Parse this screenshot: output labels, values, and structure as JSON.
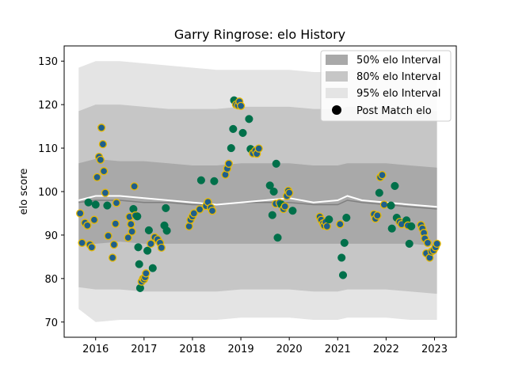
{
  "chart_data": {
    "type": "scatter",
    "title": "Garry Ringrose: elo History",
    "xlabel": "",
    "ylabel": "elo score",
    "xlim": [
      2015.35,
      2023.45
    ],
    "ylim": [
      66.5,
      133.5
    ],
    "x_ticks": [
      2016,
      2017,
      2018,
      2019,
      2020,
      2021,
      2022,
      2023
    ],
    "x_tick_labels": [
      "2016",
      "2017",
      "2018",
      "2019",
      "2020",
      "2021",
      "2022",
      "2023"
    ],
    "y_ticks": [
      70,
      80,
      90,
      100,
      110,
      120,
      130
    ],
    "y_tick_labels": [
      "70",
      "80",
      "90",
      "100",
      "110",
      "120",
      "130"
    ],
    "grid": false,
    "legend_position": "top-right",
    "legend": [
      {
        "key": "i50",
        "label": "50% elo Interval"
      },
      {
        "key": "i80",
        "label": "80% elo Interval"
      },
      {
        "key": "i95",
        "label": "95% elo Interval"
      },
      {
        "key": "pts",
        "label": "Post Match elo"
      }
    ],
    "colors": {
      "band50": "#a9a9a9",
      "band80": "#c6c6c6",
      "band95": "#e4e4e4",
      "mean_line": "#808080",
      "median_line": "#ffffff",
      "point_fill": "#00704a",
      "point_fill_alt": "#1f5f8b",
      "point_edge_alt": "#e6b800"
    },
    "bands": {
      "x": [
        2015.65,
        2016.0,
        2016.5,
        2017.0,
        2017.5,
        2018.0,
        2018.5,
        2019.0,
        2019.5,
        2020.0,
        2020.5,
        2021.0,
        2021.2,
        2021.5,
        2022.0,
        2022.5,
        2023.05
      ],
      "p95_hi": [
        128.5,
        130.0,
        130.0,
        129.5,
        129.0,
        128.5,
        128.0,
        128.0,
        128.0,
        128.0,
        127.5,
        127.5,
        128.0,
        128.0,
        128.0,
        127.5,
        127.5
      ],
      "p80_hi": [
        118.5,
        120.0,
        120.0,
        119.5,
        119.0,
        119.0,
        119.0,
        119.5,
        119.5,
        119.5,
        119.0,
        119.0,
        119.5,
        119.5,
        119.5,
        119.0,
        118.5
      ],
      "p50_hi": [
        106.5,
        107.5,
        107.0,
        107.0,
        106.5,
        106.0,
        106.0,
        106.5,
        106.5,
        106.5,
        106.0,
        106.0,
        106.5,
        106.5,
        106.5,
        106.0,
        105.5
      ],
      "p50_lo": [
        88.0,
        88.0,
        88.5,
        88.0,
        88.0,
        88.0,
        88.0,
        88.0,
        88.0,
        88.0,
        88.0,
        88.0,
        88.0,
        88.0,
        88.0,
        88.0,
        87.5
      ],
      "p80_lo": [
        78.0,
        77.5,
        77.5,
        77.0,
        77.0,
        77.0,
        77.0,
        77.5,
        77.5,
        77.5,
        77.0,
        77.0,
        77.5,
        77.5,
        77.5,
        77.0,
        76.5
      ],
      "p95_lo": [
        73.0,
        70.0,
        70.5,
        70.5,
        70.5,
        70.5,
        70.5,
        71.0,
        71.0,
        71.0,
        70.5,
        70.5,
        71.0,
        71.0,
        71.0,
        70.5,
        70.5
      ],
      "mean": [
        97.5,
        98.0,
        98.0,
        97.5,
        97.5,
        97.0,
        97.0,
        97.5,
        97.5,
        97.5,
        97.0,
        97.0,
        98.0,
        97.5,
        97.0,
        96.5,
        96.0
      ],
      "median": [
        98.0,
        99.0,
        99.0,
        98.5,
        98.0,
        97.5,
        97.0,
        97.5,
        98.0,
        98.5,
        97.5,
        98.0,
        99.0,
        98.0,
        97.5,
        97.0,
        96.5
      ]
    },
    "points": [
      {
        "x": 2015.68,
        "y": 95.0,
        "s": "a"
      },
      {
        "x": 2015.72,
        "y": 88.2,
        "s": "a"
      },
      {
        "x": 2015.78,
        "y": 92.8,
        "s": "a"
      },
      {
        "x": 2015.83,
        "y": 92.2,
        "s": "a"
      },
      {
        "x": 2015.85,
        "y": 97.5,
        "s": "g"
      },
      {
        "x": 2015.88,
        "y": 87.8,
        "s": "a"
      },
      {
        "x": 2015.92,
        "y": 87.2,
        "s": "a"
      },
      {
        "x": 2015.97,
        "y": 93.5,
        "s": "a"
      },
      {
        "x": 2016.0,
        "y": 97.0,
        "s": "g"
      },
      {
        "x": 2016.03,
        "y": 103.3,
        "s": "a"
      },
      {
        "x": 2016.07,
        "y": 108.0,
        "s": "a"
      },
      {
        "x": 2016.1,
        "y": 107.3,
        "s": "a"
      },
      {
        "x": 2016.12,
        "y": 114.7,
        "s": "a"
      },
      {
        "x": 2016.15,
        "y": 110.9,
        "s": "a"
      },
      {
        "x": 2016.17,
        "y": 104.7,
        "s": "a"
      },
      {
        "x": 2016.2,
        "y": 99.7,
        "s": "a"
      },
      {
        "x": 2016.24,
        "y": 96.8,
        "s": "g"
      },
      {
        "x": 2016.26,
        "y": 89.8,
        "s": "a"
      },
      {
        "x": 2016.35,
        "y": 84.8,
        "s": "a"
      },
      {
        "x": 2016.38,
        "y": 87.8,
        "s": "a"
      },
      {
        "x": 2016.41,
        "y": 92.6,
        "s": "a"
      },
      {
        "x": 2016.43,
        "y": 97.4,
        "s": "a"
      },
      {
        "x": 2016.67,
        "y": 89.4,
        "s": "a"
      },
      {
        "x": 2016.7,
        "y": 94.2,
        "s": "a"
      },
      {
        "x": 2016.73,
        "y": 92.5,
        "s": "a"
      },
      {
        "x": 2016.75,
        "y": 90.8,
        "s": "a"
      },
      {
        "x": 2016.78,
        "y": 96.0,
        "s": "g"
      },
      {
        "x": 2016.8,
        "y": 101.2,
        "s": "a"
      },
      {
        "x": 2016.82,
        "y": 94.5,
        "s": "a"
      },
      {
        "x": 2016.86,
        "y": 94.3,
        "s": "g"
      },
      {
        "x": 2016.88,
        "y": 87.2,
        "s": "g"
      },
      {
        "x": 2016.9,
        "y": 83.3,
        "s": "g"
      },
      {
        "x": 2016.92,
        "y": 77.8,
        "s": "g"
      },
      {
        "x": 2016.95,
        "y": 79.3,
        "s": "a"
      },
      {
        "x": 2016.98,
        "y": 80.0,
        "s": "a"
      },
      {
        "x": 2017.0,
        "y": 79.8,
        "s": "a"
      },
      {
        "x": 2017.02,
        "y": 80.3,
        "s": "a"
      },
      {
        "x": 2017.04,
        "y": 81.2,
        "s": "a"
      },
      {
        "x": 2017.07,
        "y": 86.4,
        "s": "g"
      },
      {
        "x": 2017.1,
        "y": 91.1,
        "s": "g"
      },
      {
        "x": 2017.14,
        "y": 88.0,
        "s": "a"
      },
      {
        "x": 2017.18,
        "y": 82.4,
        "s": "g"
      },
      {
        "x": 2017.22,
        "y": 89.5,
        "s": "a"
      },
      {
        "x": 2017.28,
        "y": 89.0,
        "s": "a"
      },
      {
        "x": 2017.33,
        "y": 88.2,
        "s": "a"
      },
      {
        "x": 2017.36,
        "y": 87.1,
        "s": "a"
      },
      {
        "x": 2017.42,
        "y": 92.2,
        "s": "g"
      },
      {
        "x": 2017.45,
        "y": 96.2,
        "s": "g"
      },
      {
        "x": 2017.47,
        "y": 91.0,
        "s": "g"
      },
      {
        "x": 2017.93,
        "y": 92.0,
        "s": "a"
      },
      {
        "x": 2017.96,
        "y": 93.5,
        "s": "a"
      },
      {
        "x": 2018.0,
        "y": 94.3,
        "s": "a"
      },
      {
        "x": 2018.03,
        "y": 95.0,
        "s": "a"
      },
      {
        "x": 2018.15,
        "y": 95.9,
        "s": "a"
      },
      {
        "x": 2018.18,
        "y": 102.6,
        "s": "g"
      },
      {
        "x": 2018.28,
        "y": 96.7,
        "s": "a"
      },
      {
        "x": 2018.32,
        "y": 97.6,
        "s": "a"
      },
      {
        "x": 2018.38,
        "y": 96.3,
        "s": "a"
      },
      {
        "x": 2018.41,
        "y": 95.6,
        "s": "a"
      },
      {
        "x": 2018.45,
        "y": 102.4,
        "s": "g"
      },
      {
        "x": 2018.68,
        "y": 103.9,
        "s": "a"
      },
      {
        "x": 2018.72,
        "y": 105.3,
        "s": "a"
      },
      {
        "x": 2018.75,
        "y": 106.4,
        "s": "a"
      },
      {
        "x": 2018.8,
        "y": 110.0,
        "s": "g"
      },
      {
        "x": 2018.84,
        "y": 114.4,
        "s": "g"
      },
      {
        "x": 2018.86,
        "y": 121.0,
        "s": "g"
      },
      {
        "x": 2018.9,
        "y": 120.0,
        "s": "a"
      },
      {
        "x": 2018.94,
        "y": 119.8,
        "s": "a"
      },
      {
        "x": 2018.97,
        "y": 120.7,
        "s": "a"
      },
      {
        "x": 2019.0,
        "y": 119.7,
        "s": "a"
      },
      {
        "x": 2019.04,
        "y": 113.5,
        "s": "g"
      },
      {
        "x": 2019.17,
        "y": 116.7,
        "s": "g"
      },
      {
        "x": 2019.2,
        "y": 109.8,
        "s": "g"
      },
      {
        "x": 2019.25,
        "y": 108.8,
        "s": "a"
      },
      {
        "x": 2019.3,
        "y": 109.4,
        "s": "a"
      },
      {
        "x": 2019.33,
        "y": 108.7,
        "s": "a"
      },
      {
        "x": 2019.37,
        "y": 109.9,
        "s": "a"
      },
      {
        "x": 2019.6,
        "y": 101.4,
        "s": "g"
      },
      {
        "x": 2019.65,
        "y": 94.6,
        "s": "g"
      },
      {
        "x": 2019.68,
        "y": 100.0,
        "s": "g"
      },
      {
        "x": 2019.72,
        "y": 97.2,
        "s": "a"
      },
      {
        "x": 2019.73,
        "y": 106.4,
        "s": "g"
      },
      {
        "x": 2019.76,
        "y": 89.4,
        "s": "g"
      },
      {
        "x": 2019.8,
        "y": 97.4,
        "s": "a"
      },
      {
        "x": 2019.84,
        "y": 97.0,
        "s": "g"
      },
      {
        "x": 2019.88,
        "y": 96.0,
        "s": "a"
      },
      {
        "x": 2019.91,
        "y": 96.6,
        "s": "a"
      },
      {
        "x": 2019.95,
        "y": 99.0,
        "s": "a"
      },
      {
        "x": 2019.98,
        "y": 100.2,
        "s": "a"
      },
      {
        "x": 2020.0,
        "y": 99.7,
        "s": "a"
      },
      {
        "x": 2020.07,
        "y": 95.6,
        "s": "g"
      },
      {
        "x": 2020.63,
        "y": 94.2,
        "s": "a"
      },
      {
        "x": 2020.66,
        "y": 93.5,
        "s": "a"
      },
      {
        "x": 2020.7,
        "y": 92.7,
        "s": "a"
      },
      {
        "x": 2020.72,
        "y": 92.2,
        "s": "a"
      },
      {
        "x": 2020.75,
        "y": 93.0,
        "s": "a"
      },
      {
        "x": 2020.78,
        "y": 92.0,
        "s": "a"
      },
      {
        "x": 2020.82,
        "y": 93.6,
        "s": "g"
      },
      {
        "x": 2021.05,
        "y": 92.5,
        "s": "a"
      },
      {
        "x": 2021.08,
        "y": 84.8,
        "s": "g"
      },
      {
        "x": 2021.11,
        "y": 80.8,
        "s": "g"
      },
      {
        "x": 2021.14,
        "y": 88.2,
        "s": "g"
      },
      {
        "x": 2021.18,
        "y": 94.0,
        "s": "g"
      },
      {
        "x": 2021.75,
        "y": 94.8,
        "s": "a"
      },
      {
        "x": 2021.78,
        "y": 93.8,
        "s": "a"
      },
      {
        "x": 2021.82,
        "y": 94.5,
        "s": "a"
      },
      {
        "x": 2021.86,
        "y": 99.7,
        "s": "g"
      },
      {
        "x": 2021.88,
        "y": 103.3,
        "s": "a"
      },
      {
        "x": 2021.92,
        "y": 103.8,
        "s": "a"
      },
      {
        "x": 2021.96,
        "y": 97.0,
        "s": "a"
      },
      {
        "x": 2022.1,
        "y": 96.8,
        "s": "g"
      },
      {
        "x": 2022.12,
        "y": 91.5,
        "s": "g"
      },
      {
        "x": 2022.18,
        "y": 101.3,
        "s": "g"
      },
      {
        "x": 2022.22,
        "y": 94.0,
        "s": "g"
      },
      {
        "x": 2022.28,
        "y": 93.0,
        "s": "a"
      },
      {
        "x": 2022.32,
        "y": 92.5,
        "s": "a"
      },
      {
        "x": 2022.42,
        "y": 93.4,
        "s": "g"
      },
      {
        "x": 2022.45,
        "y": 92.2,
        "s": "a"
      },
      {
        "x": 2022.48,
        "y": 88.0,
        "s": "g"
      },
      {
        "x": 2022.52,
        "y": 92.0,
        "s": "g"
      },
      {
        "x": 2022.72,
        "y": 92.3,
        "s": "a"
      },
      {
        "x": 2022.75,
        "y": 91.5,
        "s": "a"
      },
      {
        "x": 2022.78,
        "y": 90.5,
        "s": "a"
      },
      {
        "x": 2022.8,
        "y": 89.2,
        "s": "a"
      },
      {
        "x": 2022.83,
        "y": 85.8,
        "s": "a"
      },
      {
        "x": 2022.86,
        "y": 88.2,
        "s": "a"
      },
      {
        "x": 2022.9,
        "y": 84.8,
        "s": "a"
      },
      {
        "x": 2022.94,
        "y": 86.2,
        "s": "a"
      },
      {
        "x": 2022.98,
        "y": 86.5,
        "s": "a"
      },
      {
        "x": 2023.02,
        "y": 87.2,
        "s": "a"
      },
      {
        "x": 2023.05,
        "y": 88.0,
        "s": "a"
      }
    ]
  }
}
